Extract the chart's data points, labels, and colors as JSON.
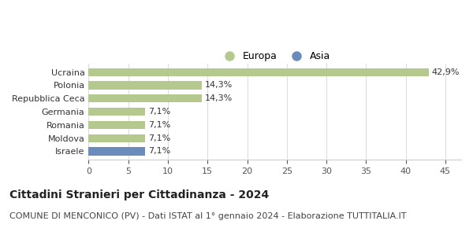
{
  "categories": [
    "Israele",
    "Moldova",
    "Romania",
    "Germania",
    "Repubblica Ceca",
    "Polonia",
    "Ucraina"
  ],
  "values": [
    7.1,
    7.1,
    7.1,
    7.1,
    14.3,
    14.3,
    42.9
  ],
  "labels": [
    "7,1%",
    "7,1%",
    "7,1%",
    "7,1%",
    "14,3%",
    "14,3%",
    "42,9%"
  ],
  "colors": [
    "#6b8cba",
    "#b5c98e",
    "#b5c98e",
    "#b5c98e",
    "#b5c98e",
    "#b5c98e",
    "#b5c98e"
  ],
  "legend_europa_color": "#b5c98e",
  "legend_asia_color": "#6b8cba",
  "xlim": [
    0,
    47
  ],
  "xticks": [
    0,
    5,
    10,
    15,
    20,
    25,
    30,
    35,
    40,
    45
  ],
  "title": "Cittadini Stranieri per Cittadinanza - 2024",
  "subtitle": "COMUNE DI MENCONICO (PV) - Dati ISTAT al 1° gennaio 2024 - Elaborazione TUTTITALIA.IT",
  "bg_color": "#ffffff",
  "bar_height": 0.6,
  "label_fontsize": 8,
  "title_fontsize": 10,
  "subtitle_fontsize": 8,
  "tick_fontsize": 8,
  "ytick_fontsize": 8
}
